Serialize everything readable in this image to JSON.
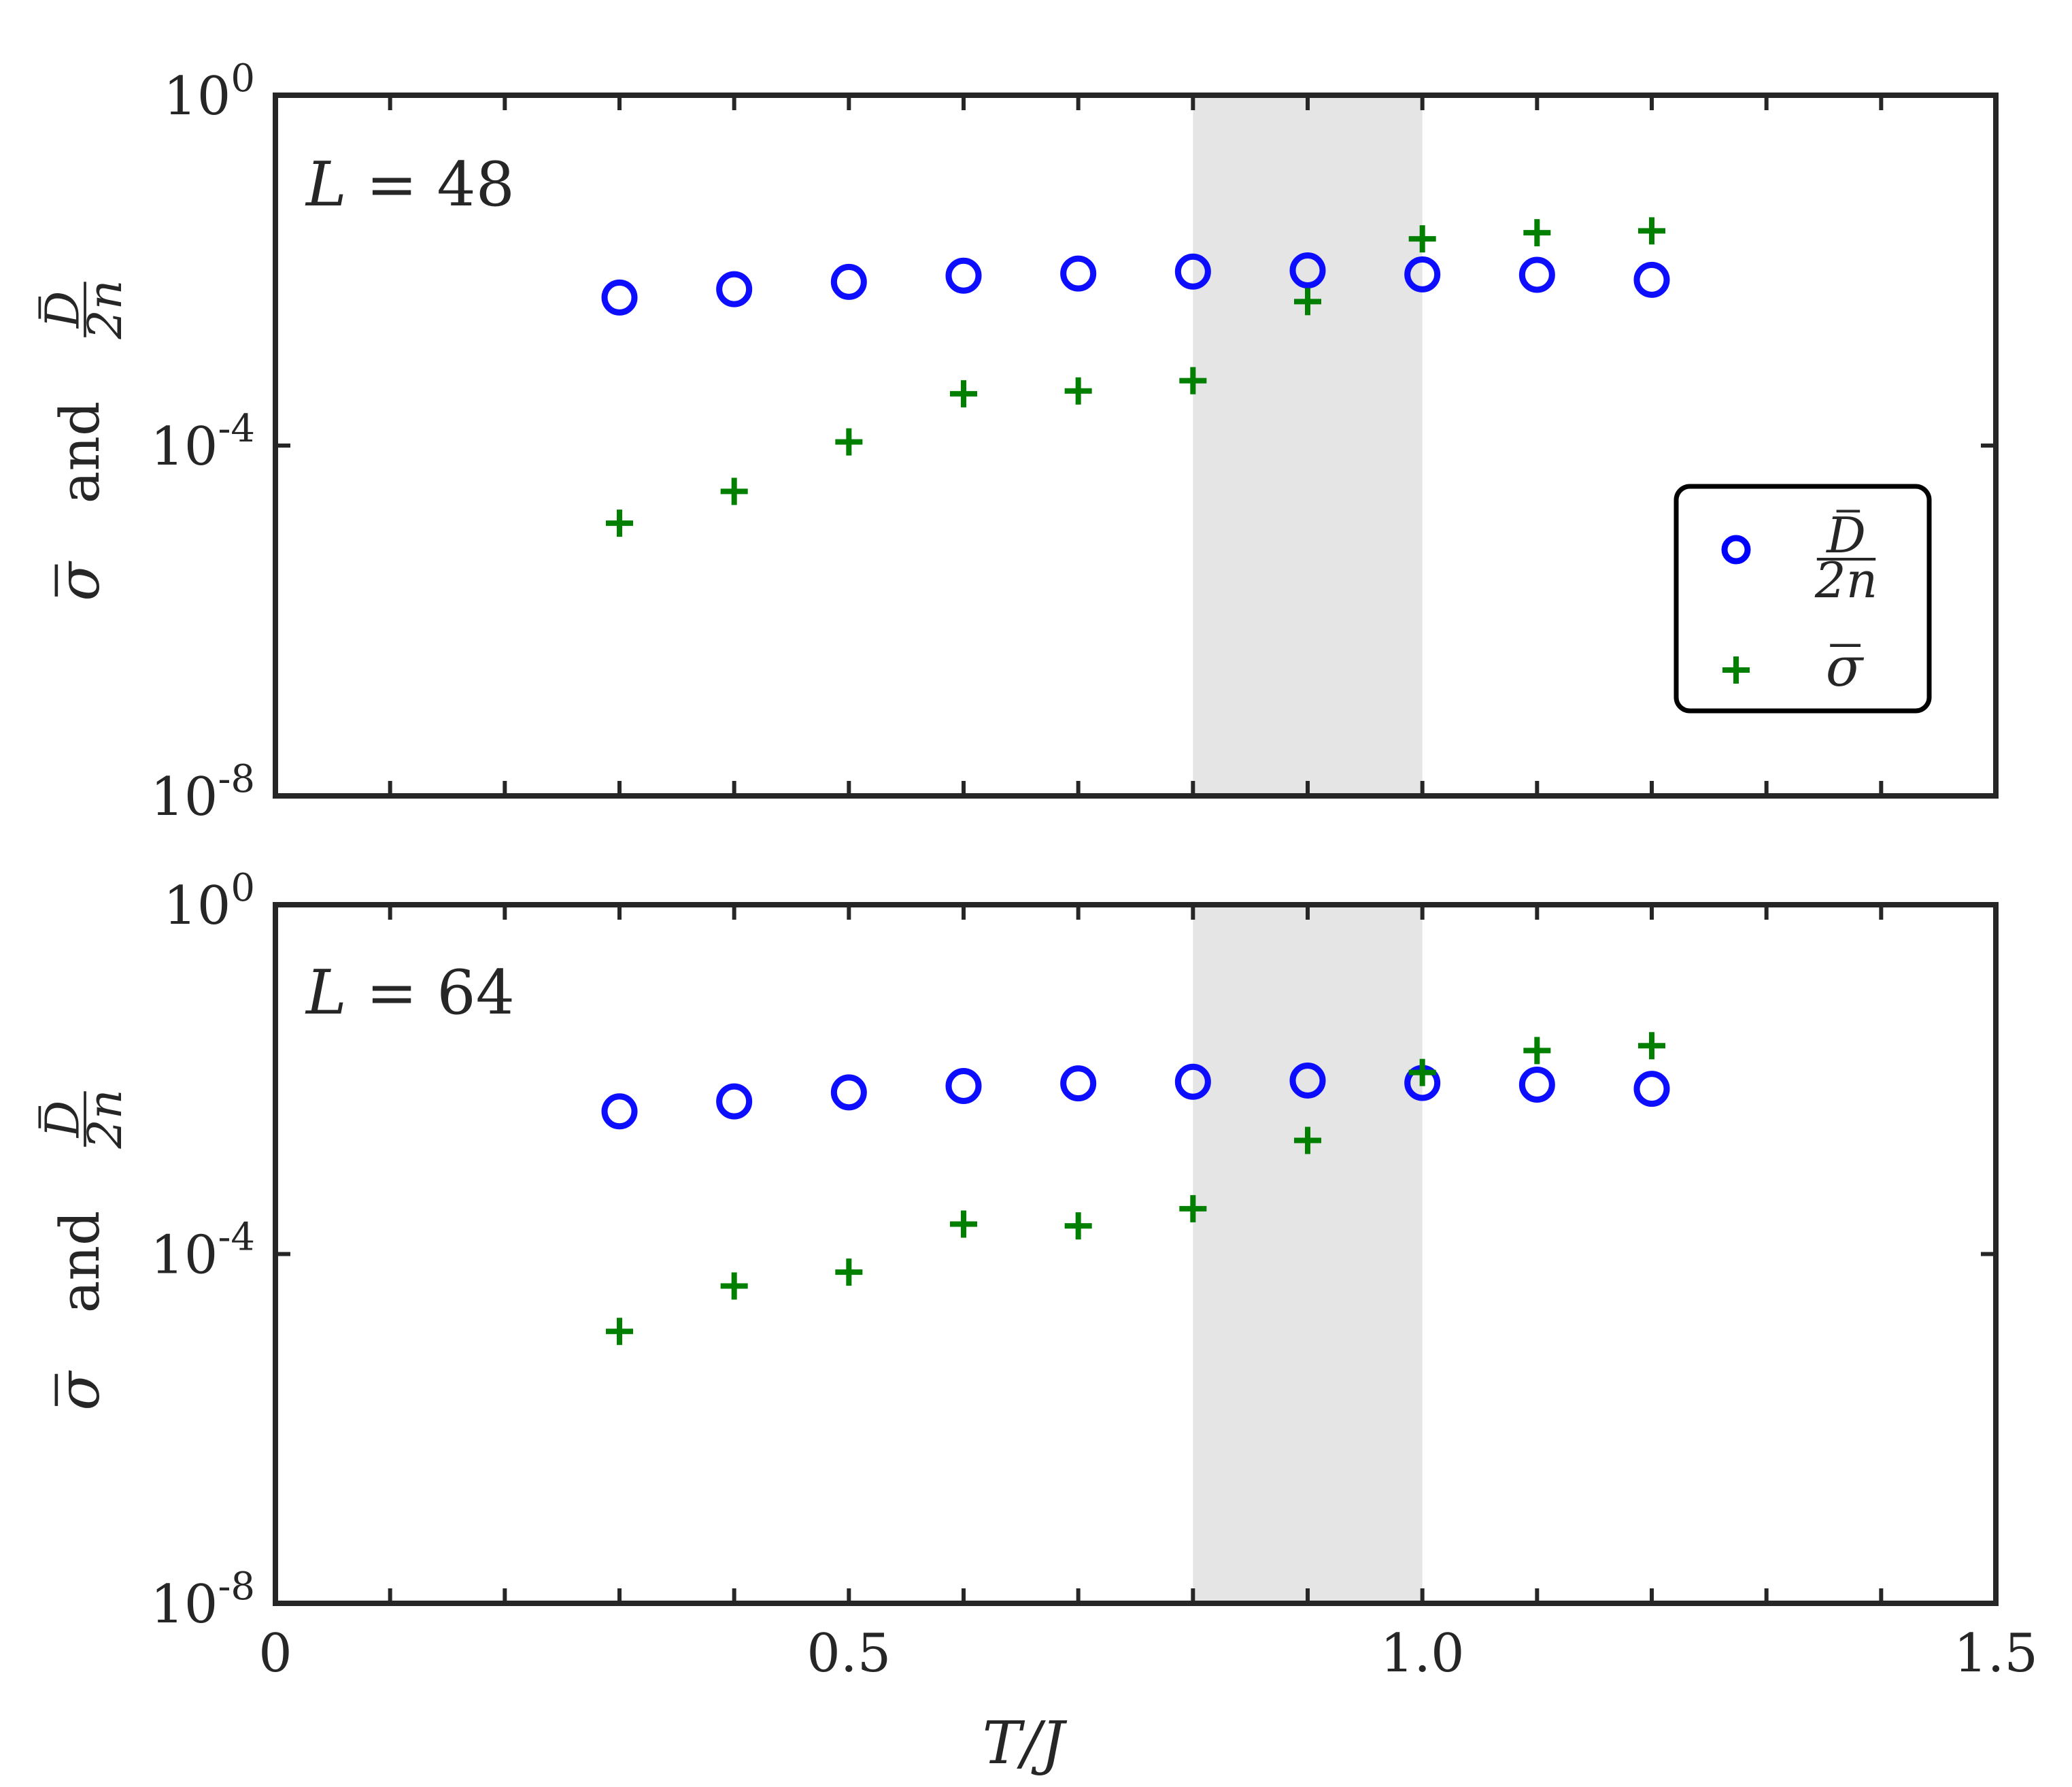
{
  "chart_data": [
    {
      "type": "scatter",
      "panel_label": "L = 48",
      "panel_label_symbol": "L",
      "panel_label_value": "= 48",
      "ylabel_text": "and",
      "xlabel": "T/J",
      "xlim": [
        0,
        1.5
      ],
      "ylim": [
        1e-08,
        1
      ],
      "yscale": "log",
      "xticks": [
        0,
        0.1,
        0.2,
        0.3,
        0.4,
        0.5,
        0.6,
        0.7,
        0.8,
        0.9,
        1.0,
        1.1,
        1.2,
        1.3,
        1.4,
        1.5
      ],
      "xtick_labels": [],
      "yticks": [
        {
          "value": 1,
          "base": "10",
          "exp": "0"
        },
        {
          "value": 0.0001,
          "base": "10",
          "exp": "-4"
        },
        {
          "value": 1e-08,
          "base": "10",
          "exp": "-8"
        }
      ],
      "shaded_region": {
        "x": [
          0.8,
          1.0
        ],
        "color": "#e5e5e5"
      },
      "legend": {
        "position": "right",
        "entries": [
          "D̄/2n",
          "σ̄"
        ]
      },
      "series": [
        {
          "name": "D̄/2n",
          "marker": "circle",
          "color": "#0000ff",
          "x": [
            0.3,
            0.4,
            0.5,
            0.6,
            0.7,
            0.8,
            0.9,
            1.0,
            1.1,
            1.2
          ],
          "y": [
            0.0049,
            0.0061,
            0.0074,
            0.0087,
            0.0092,
            0.0097,
            0.01,
            0.009,
            0.0089,
            0.0078
          ]
        },
        {
          "name": "σ̄",
          "marker": "plus",
          "color": "#007f00",
          "x": [
            0.3,
            0.4,
            0.5,
            0.6,
            0.7,
            0.8,
            0.9,
            1.0,
            1.1,
            1.2
          ],
          "y": [
            1.3e-05,
            3e-05,
            0.00011,
            0.00039,
            0.00042,
            0.00055,
            0.0044,
            0.0229,
            0.0269,
            0.0283
          ]
        }
      ]
    },
    {
      "type": "scatter",
      "panel_label": "L = 64",
      "panel_label_symbol": "L",
      "panel_label_value": "= 64",
      "ylabel_text": "and",
      "xlabel": "T/J",
      "xlim": [
        0,
        1.5
      ],
      "ylim": [
        1e-08,
        1
      ],
      "yscale": "log",
      "xticks": [
        0,
        0.1,
        0.2,
        0.3,
        0.4,
        0.5,
        0.6,
        0.7,
        0.8,
        0.9,
        1.0,
        1.1,
        1.2,
        1.3,
        1.4,
        1.5
      ],
      "xtick_labels": [
        {
          "value": 0,
          "label": "0"
        },
        {
          "value": 0.5,
          "label": "0.5"
        },
        {
          "value": 1.0,
          "label": "1.0"
        },
        {
          "value": 1.5,
          "label": "1.5"
        }
      ],
      "yticks": [
        {
          "value": 1,
          "base": "10",
          "exp": "0"
        },
        {
          "value": 0.0001,
          "base": "10",
          "exp": "-4"
        },
        {
          "value": 1e-08,
          "base": "10",
          "exp": "-8"
        }
      ],
      "shaded_region": {
        "x": [
          0.8,
          1.0
        ],
        "color": "#e5e5e5"
      },
      "series": [
        {
          "name": "D̄/2n",
          "marker": "circle",
          "color": "#0000ff",
          "x": [
            0.3,
            0.4,
            0.5,
            0.6,
            0.7,
            0.8,
            0.9,
            1.0,
            1.1,
            1.2
          ],
          "y": [
            0.0043,
            0.0056,
            0.0071,
            0.0084,
            0.009,
            0.0094,
            0.0097,
            0.0091,
            0.0087,
            0.0078
          ]
        },
        {
          "name": "σ̄",
          "marker": "plus",
          "color": "#007f00",
          "x": [
            0.3,
            0.4,
            0.5,
            0.6,
            0.7,
            0.8,
            0.9,
            1.0,
            1.1,
            1.2
          ],
          "y": [
            1.3e-05,
            4.3e-05,
            6.2e-05,
            0.00022,
            0.00021,
            0.00033,
            0.002,
            0.012,
            0.0214,
            0.0243
          ]
        }
      ]
    }
  ]
}
